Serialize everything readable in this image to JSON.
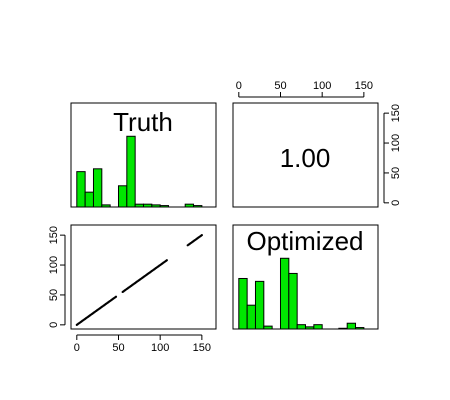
{
  "chart_data": {
    "type": "scatter-matrix",
    "variables": [
      "Truth",
      "Optimized"
    ],
    "correlation": {
      "label": "1.00",
      "value": 1.0
    },
    "axis_range": [
      0,
      160
    ],
    "ticks": [
      0,
      50,
      100,
      150
    ],
    "tick_labels": [
      "0",
      "50",
      "100",
      "150"
    ],
    "histogram_range": [
      0,
      160
    ],
    "histograms": {
      "truth": {
        "name": "Truth",
        "bins": [
          0,
          10,
          20,
          30,
          40,
          50,
          60,
          70,
          80,
          90,
          100,
          110,
          120,
          130,
          140,
          150
        ],
        "counts": [
          50,
          21,
          54,
          3,
          0,
          30,
          100,
          4,
          4,
          3,
          2,
          0,
          0,
          4,
          2
        ]
      },
      "optimized": {
        "name": "Optimized",
        "bins": [
          0,
          10,
          20,
          30,
          40,
          50,
          60,
          70,
          80,
          90,
          100,
          110,
          120,
          130,
          140,
          150
        ],
        "counts": [
          70,
          33,
          66,
          4,
          0,
          98,
          77,
          6,
          3,
          6,
          0,
          0,
          1,
          8,
          2
        ]
      }
    },
    "scatter": {
      "segments": [
        {
          "from": 0,
          "to": 47
        },
        {
          "from": 55,
          "to": 108
        },
        {
          "from": 133,
          "to": 150
        }
      ]
    }
  }
}
